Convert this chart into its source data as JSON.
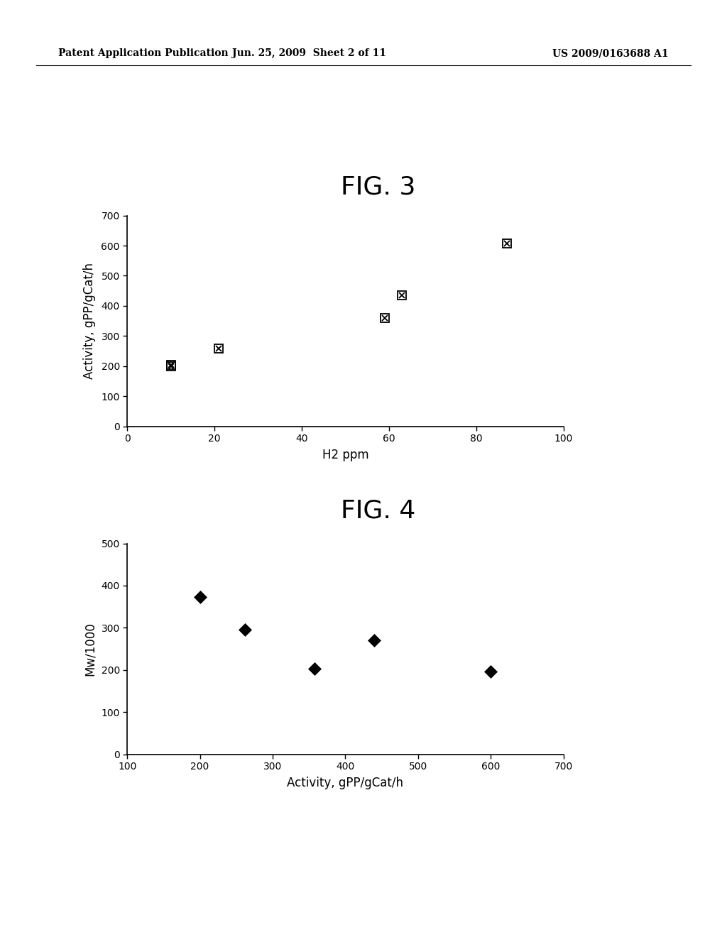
{
  "header_left": "Patent Application Publication",
  "header_middle": "Jun. 25, 2009  Sheet 2 of 11",
  "header_right": "US 2009/0163688 A1",
  "fig3": {
    "title": "FIG. 3",
    "x": [
      10,
      10,
      21,
      59,
      63,
      87
    ],
    "y": [
      200,
      205,
      258,
      360,
      435,
      607
    ],
    "xlabel": "H2 ppm",
    "ylabel": "Activity, gPP/gCat/h",
    "xlim": [
      0,
      100
    ],
    "ylim": [
      0,
      700
    ],
    "xticks": [
      0,
      20,
      40,
      60,
      80,
      100
    ],
    "yticks": [
      0,
      100,
      200,
      300,
      400,
      500,
      600,
      700
    ]
  },
  "fig4": {
    "title": "FIG. 4",
    "x": [
      200,
      262,
      358,
      440,
      600
    ],
    "y": [
      373,
      295,
      203,
      270,
      197
    ],
    "xlabel": "Activity, gPP/gCat/h",
    "ylabel": "Mw/1000",
    "xlim": [
      100,
      700
    ],
    "ylim": [
      0,
      500
    ],
    "xticks": [
      100,
      200,
      300,
      400,
      500,
      600,
      700
    ],
    "yticks": [
      0,
      100,
      200,
      300,
      400,
      500
    ]
  },
  "background_color": "#ffffff",
  "marker_color": "#000000",
  "title_fontsize": 26,
  "axis_label_fontsize": 12,
  "tick_fontsize": 10,
  "header_fontsize": 10
}
